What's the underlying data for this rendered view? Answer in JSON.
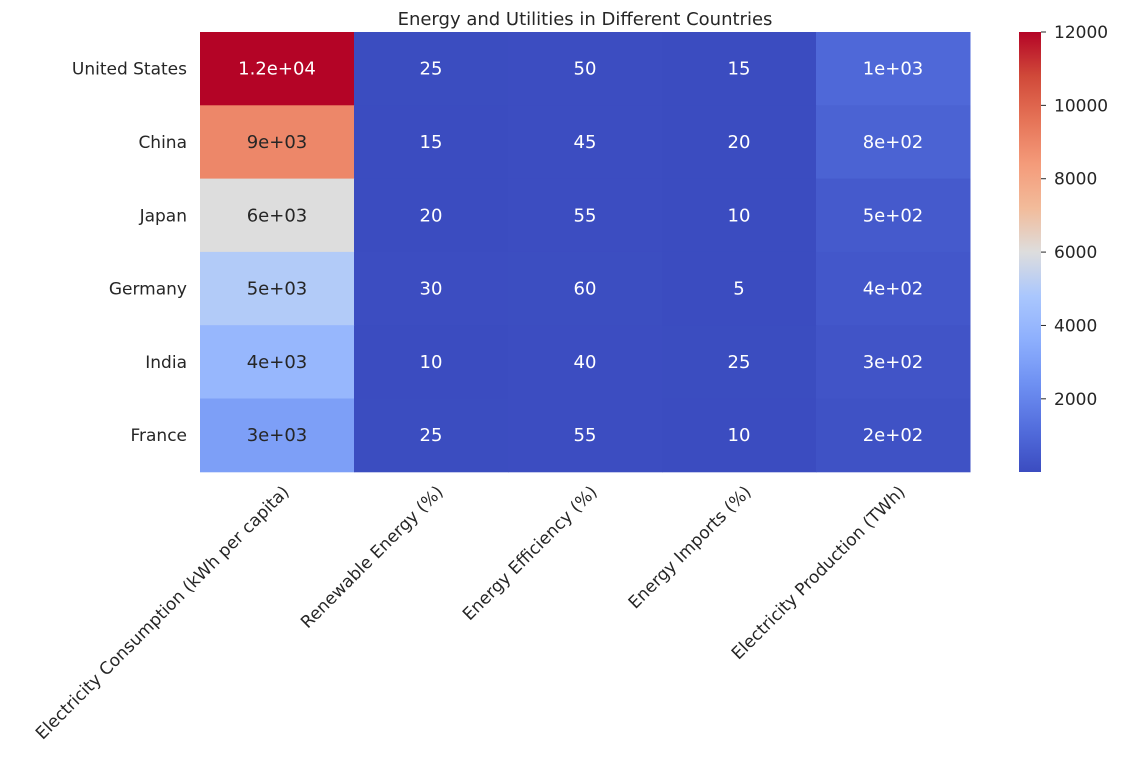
{
  "chart_data": {
    "type": "heatmap",
    "title": "Energy and Utilities in Different Countries",
    "rows": [
      "United States",
      "China",
      "Japan",
      "Germany",
      "India",
      "France"
    ],
    "columns": [
      "Electricity Consumption (kWh per capita)",
      "Renewable Energy (%)",
      "Energy Efficiency (%)",
      "Energy Imports (%)",
      "Electricity Production (TWh)"
    ],
    "values": [
      [
        12000,
        25,
        50,
        15,
        1000
      ],
      [
        9000,
        15,
        45,
        20,
        800
      ],
      [
        6000,
        20,
        55,
        10,
        500
      ],
      [
        5000,
        30,
        60,
        5,
        400
      ],
      [
        4000,
        10,
        40,
        25,
        300
      ],
      [
        3000,
        25,
        55,
        10,
        200
      ]
    ],
    "annotations": [
      [
        "1.2e+04",
        "25",
        "50",
        "15",
        "1e+03"
      ],
      [
        "9e+03",
        "15",
        "45",
        "20",
        "8e+02"
      ],
      [
        "6e+03",
        "20",
        "55",
        "10",
        "5e+02"
      ],
      [
        "5e+03",
        "30",
        "60",
        "5",
        "4e+02"
      ],
      [
        "4e+03",
        "10",
        "40",
        "25",
        "3e+02"
      ],
      [
        "3e+03",
        "25",
        "55",
        "10",
        "2e+02"
      ]
    ],
    "colormap": "coolwarm",
    "vmin": 5,
    "vmax": 12000,
    "colorbar": {
      "ticks": [
        2000,
        4000,
        6000,
        8000,
        10000,
        12000
      ],
      "tick_labels": [
        "2000",
        "4000",
        "6000",
        "8000",
        "10000",
        "12000"
      ],
      "placement": "right"
    },
    "xlabel": "",
    "ylabel": "",
    "grid": false
  }
}
